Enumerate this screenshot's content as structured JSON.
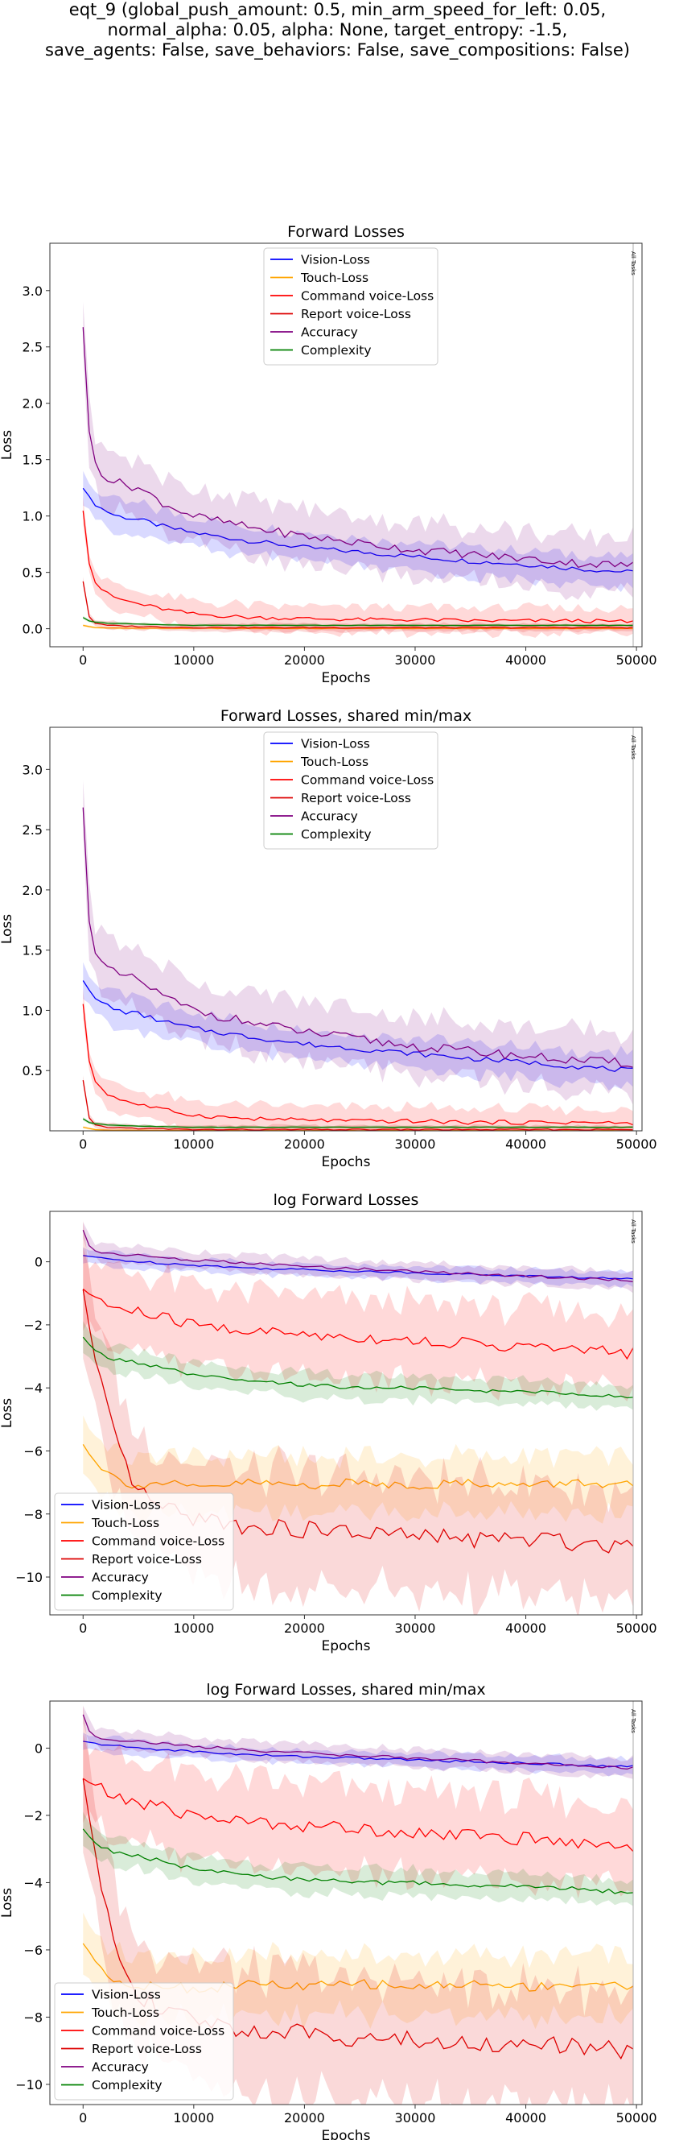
{
  "figure": {
    "suptitle_lines": [
      "eqt_9 (global_push_amount: 0.5, min_arm_speed_for_left: 0.05,",
      "normal_alpha: 0.05, alpha: None, target_entropy: -1.5,",
      "save_agents: False, save_behaviors: False, save_compositions: False)"
    ]
  },
  "series_style": [
    {
      "name": "Vision-Loss",
      "color": "#0000ff"
    },
    {
      "name": "Touch-Loss",
      "color": "#ffa500"
    },
    {
      "name": "Command voice-Loss",
      "color": "#ff0000"
    },
    {
      "name": "Report voice-Loss",
      "color": "#dd0000"
    },
    {
      "name": "Accuracy",
      "color": "#800080"
    },
    {
      "name": "Complexity",
      "color": "#008000"
    }
  ],
  "chart_data": [
    {
      "type": "line",
      "title": "Forward Losses",
      "xlabel": "Epochs",
      "ylabel": "Loss",
      "xlim": [
        -3000,
        50500
      ],
      "ylim": [
        -0.16,
        3.42
      ],
      "xticks": [
        0,
        10000,
        20000,
        30000,
        40000,
        50000
      ],
      "yticks": [
        0.0,
        0.5,
        1.0,
        1.5,
        2.0,
        2.5,
        3.0
      ],
      "ytick_labels": [
        "0.0",
        "0.5",
        "1.0",
        "1.5",
        "2.0",
        "2.5",
        "3.0"
      ],
      "legend_position": "upper-center",
      "annotation": "All Tasks",
      "annotation_x": 49700,
      "series": [
        {
          "name": "Vision-Loss",
          "color": "#0000ff",
          "x": [
            0,
            500,
            1000,
            2000,
            3000,
            5000,
            7500,
            10000,
            15000,
            20000,
            25000,
            30000,
            35000,
            40000,
            45000,
            49700
          ],
          "values": [
            1.25,
            1.18,
            1.1,
            1.05,
            1.0,
            0.97,
            0.9,
            0.85,
            0.78,
            0.72,
            0.68,
            0.64,
            0.6,
            0.57,
            0.53,
            0.5
          ],
          "band": 0.12
        },
        {
          "name": "Touch-Loss",
          "color": "#ffa500",
          "x": [
            0,
            500,
            1000,
            3000,
            10000,
            25000,
            49700
          ],
          "values": [
            0.03,
            0.02,
            0.01,
            0.005,
            0.003,
            0.002,
            0.002
          ],
          "band": 0.01
        },
        {
          "name": "Command voice-Loss",
          "color": "#ff0000",
          "x": [
            0,
            300,
            600,
            1000,
            2000,
            3000,
            5000,
            7500,
            10000,
            15000,
            20000,
            25000,
            30000,
            35000,
            40000,
            45000,
            49700
          ],
          "values": [
            1.05,
            0.75,
            0.55,
            0.42,
            0.32,
            0.27,
            0.22,
            0.17,
            0.13,
            0.1,
            0.09,
            0.08,
            0.08,
            0.07,
            0.07,
            0.07,
            0.06
          ],
          "band": 0.1
        },
        {
          "name": "Report voice-Loss",
          "color": "#dd0000",
          "x": [
            0,
            300,
            600,
            1000,
            2000,
            5000,
            10000,
            20000,
            30000,
            40000,
            49700
          ],
          "values": [
            0.42,
            0.2,
            0.09,
            0.05,
            0.03,
            0.02,
            0.01,
            0.01,
            0.01,
            0.01,
            0.01
          ],
          "band": 0.03
        },
        {
          "name": "Accuracy",
          "color": "#800080",
          "x": [
            0,
            300,
            700,
            1200,
            2000,
            3000,
            5000,
            7500,
            10000,
            15000,
            20000,
            25000,
            30000,
            35000,
            40000,
            45000,
            49700
          ],
          "values": [
            2.68,
            2.0,
            1.6,
            1.45,
            1.35,
            1.3,
            1.25,
            1.1,
            1.0,
            0.9,
            0.82,
            0.76,
            0.7,
            0.66,
            0.62,
            0.58,
            0.56
          ],
          "band": 0.22
        },
        {
          "name": "Complexity",
          "color": "#008000",
          "x": [
            0,
            500,
            1000,
            2000,
            5000,
            10000,
            20000,
            30000,
            40000,
            49700
          ],
          "values": [
            0.1,
            0.07,
            0.06,
            0.05,
            0.04,
            0.03,
            0.03,
            0.03,
            0.03,
            0.03
          ],
          "band": 0.01
        }
      ]
    },
    {
      "type": "line",
      "title": "Forward Losses, shared min/max",
      "xlabel": "Epochs",
      "ylabel": "Loss",
      "xlim": [
        -3000,
        50500
      ],
      "ylim": [
        0.0,
        3.35
      ],
      "xticks": [
        0,
        10000,
        20000,
        30000,
        40000,
        50000
      ],
      "yticks": [
        0.5,
        1.0,
        1.5,
        2.0,
        2.5,
        3.0
      ],
      "ytick_labels": [
        "0.5",
        "1.0",
        "1.5",
        "2.0",
        "2.5",
        "3.0"
      ],
      "legend_position": "upper-center",
      "annotation": "All Tasks",
      "annotation_x": 49700,
      "series": [
        {
          "name": "Vision-Loss",
          "color": "#0000ff",
          "x": [
            0,
            500,
            1000,
            2000,
            3000,
            5000,
            7500,
            10000,
            15000,
            20000,
            25000,
            30000,
            35000,
            40000,
            45000,
            49700
          ],
          "values": [
            1.25,
            1.18,
            1.1,
            1.05,
            1.0,
            0.97,
            0.9,
            0.85,
            0.78,
            0.72,
            0.68,
            0.64,
            0.6,
            0.57,
            0.53,
            0.5
          ],
          "band": 0.12
        },
        {
          "name": "Touch-Loss",
          "color": "#ffa500",
          "x": [
            0,
            500,
            1000,
            3000,
            10000,
            25000,
            49700
          ],
          "values": [
            0.03,
            0.02,
            0.01,
            0.005,
            0.003,
            0.002,
            0.002
          ],
          "band": 0.01
        },
        {
          "name": "Command voice-Loss",
          "color": "#ff0000",
          "x": [
            0,
            300,
            600,
            1000,
            2000,
            3000,
            5000,
            7500,
            10000,
            15000,
            20000,
            25000,
            30000,
            35000,
            40000,
            45000,
            49700
          ],
          "values": [
            1.05,
            0.75,
            0.55,
            0.42,
            0.32,
            0.27,
            0.22,
            0.17,
            0.13,
            0.1,
            0.09,
            0.08,
            0.08,
            0.07,
            0.07,
            0.07,
            0.06
          ],
          "band": 0.1
        },
        {
          "name": "Report voice-Loss",
          "color": "#dd0000",
          "x": [
            0,
            300,
            600,
            1000,
            2000,
            5000,
            10000,
            20000,
            30000,
            40000,
            49700
          ],
          "values": [
            0.42,
            0.2,
            0.09,
            0.05,
            0.03,
            0.02,
            0.01,
            0.01,
            0.01,
            0.01,
            0.01
          ],
          "band": 0.03
        },
        {
          "name": "Accuracy",
          "color": "#800080",
          "x": [
            0,
            300,
            700,
            1200,
            2000,
            3000,
            5000,
            7500,
            10000,
            15000,
            20000,
            25000,
            30000,
            35000,
            40000,
            45000,
            49700
          ],
          "values": [
            2.68,
            2.0,
            1.6,
            1.45,
            1.35,
            1.3,
            1.25,
            1.1,
            1.0,
            0.9,
            0.82,
            0.76,
            0.7,
            0.66,
            0.62,
            0.58,
            0.56
          ],
          "band": 0.22
        },
        {
          "name": "Complexity",
          "color": "#008000",
          "x": [
            0,
            500,
            1000,
            2000,
            5000,
            10000,
            20000,
            30000,
            40000,
            49700
          ],
          "values": [
            0.1,
            0.07,
            0.06,
            0.05,
            0.04,
            0.03,
            0.03,
            0.03,
            0.03,
            0.03
          ],
          "band": 0.01
        }
      ]
    },
    {
      "type": "line",
      "title": "log Forward Losses",
      "xlabel": "Epochs",
      "ylabel": "Loss",
      "xlim": [
        -3000,
        50500
      ],
      "ylim": [
        -11.2,
        1.6
      ],
      "xticks": [
        0,
        10000,
        20000,
        30000,
        40000,
        50000
      ],
      "yticks": [
        0,
        -2,
        -4,
        -6,
        -8,
        -10
      ],
      "ytick_labels": [
        "0",
        "−2",
        "−4",
        "−6",
        "−8",
        "−10"
      ],
      "legend_position": "lower-left",
      "annotation": "All Tasks",
      "annotation_x": 49700,
      "series": [
        {
          "name": "Vision-Loss",
          "color": "#0000ff",
          "x": [
            0,
            2000,
            5000,
            10000,
            15000,
            20000,
            25000,
            30000,
            35000,
            40000,
            45000,
            49700
          ],
          "values": [
            0.2,
            0.1,
            0.0,
            -0.1,
            -0.2,
            -0.25,
            -0.3,
            -0.35,
            -0.4,
            -0.45,
            -0.5,
            -0.55
          ],
          "band": 0.2
        },
        {
          "name": "Touch-Loss",
          "color": "#ffa500",
          "x": [
            0,
            1000,
            2000,
            3000,
            5000,
            7500,
            10000,
            15000,
            20000,
            25000,
            30000,
            35000,
            40000,
            45000,
            49700
          ],
          "values": [
            -5.8,
            -6.3,
            -6.6,
            -6.9,
            -7.1,
            -7.0,
            -7.2,
            -7.0,
            -7.1,
            -7.0,
            -7.1,
            -7.0,
            -7.1,
            -7.0,
            -7.1
          ],
          "band": 0.8
        },
        {
          "name": "Command voice-Loss",
          "color": "#ff0000",
          "x": [
            0,
            500,
            1000,
            2000,
            3000,
            5000,
            7500,
            10000,
            15000,
            20000,
            25000,
            30000,
            35000,
            40000,
            45000,
            49700
          ],
          "values": [
            -0.9,
            -1.0,
            -1.1,
            -1.3,
            -1.5,
            -1.6,
            -1.8,
            -2.0,
            -2.2,
            -2.3,
            -2.4,
            -2.5,
            -2.6,
            -2.7,
            -2.8,
            -2.9
          ],
          "band": 1.1
        },
        {
          "name": "Report voice-Loss",
          "color": "#dd0000",
          "x": [
            0,
            1000,
            2000,
            3000,
            4000,
            5000,
            7500,
            10000,
            15000,
            20000,
            25000,
            30000,
            35000,
            40000,
            45000,
            49700
          ],
          "values": [
            -0.9,
            -3.0,
            -4.5,
            -5.8,
            -6.6,
            -7.3,
            -7.9,
            -8.1,
            -8.4,
            -8.5,
            -8.6,
            -8.7,
            -8.8,
            -8.8,
            -8.9,
            -9.0
          ],
          "band": 1.6
        },
        {
          "name": "Accuracy",
          "color": "#800080",
          "x": [
            0,
            300,
            700,
            1500,
            3000,
            5000,
            10000,
            20000,
            30000,
            40000,
            49700
          ],
          "values": [
            1.0,
            0.7,
            0.4,
            0.3,
            0.25,
            0.2,
            0.05,
            -0.15,
            -0.3,
            -0.45,
            -0.6
          ],
          "band": 0.25
        },
        {
          "name": "Complexity",
          "color": "#008000",
          "x": [
            0,
            1000,
            2000,
            3000,
            5000,
            7500,
            10000,
            15000,
            20000,
            25000,
            30000,
            35000,
            40000,
            45000,
            49700
          ],
          "values": [
            -2.4,
            -2.8,
            -3.0,
            -3.1,
            -3.2,
            -3.4,
            -3.6,
            -3.8,
            -3.9,
            -4.0,
            -4.0,
            -4.1,
            -4.1,
            -4.2,
            -4.3
          ],
          "band": 0.35
        }
      ]
    },
    {
      "type": "line",
      "title": "log Forward Losses, shared min/max",
      "xlabel": "Epochs",
      "ylabel": "Loss",
      "xlim": [
        -3000,
        50500
      ],
      "ylim": [
        -10.6,
        1.4
      ],
      "xticks": [
        0,
        10000,
        20000,
        30000,
        40000,
        50000
      ],
      "yticks": [
        0,
        -2,
        -4,
        -6,
        -8,
        -10
      ],
      "ytick_labels": [
        "0",
        "−2",
        "−4",
        "−6",
        "−8",
        "−10"
      ],
      "legend_position": "lower-left",
      "annotation": "All Tasks",
      "annotation_x": 49700,
      "series": [
        {
          "name": "Vision-Loss",
          "color": "#0000ff",
          "x": [
            0,
            2000,
            5000,
            10000,
            15000,
            20000,
            25000,
            30000,
            35000,
            40000,
            45000,
            49700
          ],
          "values": [
            0.2,
            0.1,
            0.0,
            -0.1,
            -0.2,
            -0.25,
            -0.3,
            -0.35,
            -0.4,
            -0.45,
            -0.5,
            -0.55
          ],
          "band": 0.2
        },
        {
          "name": "Touch-Loss",
          "color": "#ffa500",
          "x": [
            0,
            1000,
            2000,
            3000,
            5000,
            7500,
            10000,
            15000,
            20000,
            25000,
            30000,
            35000,
            40000,
            45000,
            49700
          ],
          "values": [
            -5.8,
            -6.3,
            -6.6,
            -6.9,
            -7.1,
            -7.0,
            -7.2,
            -7.0,
            -7.1,
            -7.0,
            -7.1,
            -7.0,
            -7.1,
            -7.0,
            -7.1
          ],
          "band": 0.8
        },
        {
          "name": "Command voice-Loss",
          "color": "#ff0000",
          "x": [
            0,
            500,
            1000,
            2000,
            3000,
            5000,
            7500,
            10000,
            15000,
            20000,
            25000,
            30000,
            35000,
            40000,
            45000,
            49700
          ],
          "values": [
            -0.9,
            -1.0,
            -1.1,
            -1.3,
            -1.5,
            -1.6,
            -1.8,
            -2.0,
            -2.2,
            -2.3,
            -2.4,
            -2.5,
            -2.6,
            -2.7,
            -2.8,
            -2.9
          ],
          "band": 1.1
        },
        {
          "name": "Report voice-Loss",
          "color": "#dd0000",
          "x": [
            0,
            1000,
            2000,
            3000,
            4000,
            5000,
            7500,
            10000,
            15000,
            20000,
            25000,
            30000,
            35000,
            40000,
            45000,
            49700
          ],
          "values": [
            -0.9,
            -3.0,
            -4.5,
            -5.8,
            -6.6,
            -7.3,
            -7.9,
            -8.1,
            -8.4,
            -8.5,
            -8.6,
            -8.7,
            -8.8,
            -8.8,
            -8.9,
            -9.0
          ],
          "band": 1.6
        },
        {
          "name": "Accuracy",
          "color": "#800080",
          "x": [
            0,
            300,
            700,
            1500,
            3000,
            5000,
            10000,
            20000,
            30000,
            40000,
            49700
          ],
          "values": [
            1.0,
            0.7,
            0.4,
            0.3,
            0.25,
            0.2,
            0.05,
            -0.15,
            -0.3,
            -0.45,
            -0.6
          ],
          "band": 0.25
        },
        {
          "name": "Complexity",
          "color": "#008000",
          "x": [
            0,
            1000,
            2000,
            3000,
            5000,
            7500,
            10000,
            15000,
            20000,
            25000,
            30000,
            35000,
            40000,
            45000,
            49700
          ],
          "values": [
            -2.4,
            -2.8,
            -3.0,
            -3.1,
            -3.2,
            -3.4,
            -3.6,
            -3.8,
            -3.9,
            -4.0,
            -4.0,
            -4.1,
            -4.1,
            -4.2,
            -4.3
          ],
          "band": 0.35
        }
      ]
    }
  ]
}
